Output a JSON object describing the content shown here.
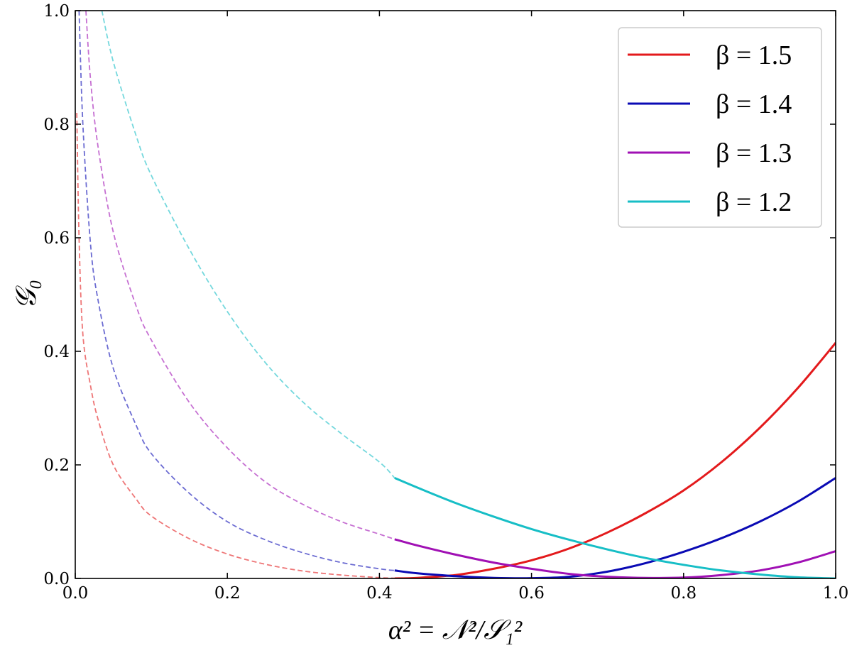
{
  "chart_data": {
    "type": "line",
    "title": "",
    "xlabel": "α² = 𝒩²/𝒮₁²",
    "ylabel": "𝒢₀",
    "xlim": [
      0.0,
      1.0
    ],
    "ylim": [
      0.0,
      1.0
    ],
    "x_ticks": [
      "0.0",
      "0.2",
      "0.4",
      "0.6",
      "0.8",
      "1.0"
    ],
    "y_ticks": [
      "0.0",
      "0.2",
      "0.4",
      "0.6",
      "0.8",
      "1.0"
    ],
    "grid": false,
    "legend_position": "top-right",
    "series": [
      {
        "name": "β = 1.5",
        "color": "#e31a1c",
        "dashed_points": [
          [
            0.002,
            0.82
          ],
          [
            0.005,
            0.6
          ],
          [
            0.01,
            0.43
          ],
          [
            0.02,
            0.34
          ],
          [
            0.03,
            0.28
          ],
          [
            0.05,
            0.2
          ],
          [
            0.08,
            0.14
          ],
          [
            0.1,
            0.11
          ],
          [
            0.15,
            0.07
          ],
          [
            0.2,
            0.043
          ],
          [
            0.25,
            0.025
          ],
          [
            0.3,
            0.013
          ],
          [
            0.35,
            0.006
          ],
          [
            0.4,
            0.0015
          ],
          [
            0.42,
            0.0005
          ]
        ],
        "solid_points": [
          [
            0.42,
            0.0
          ],
          [
            0.45,
            0.001
          ],
          [
            0.5,
            0.006
          ],
          [
            0.55,
            0.017
          ],
          [
            0.6,
            0.032
          ],
          [
            0.65,
            0.053
          ],
          [
            0.7,
            0.081
          ],
          [
            0.75,
            0.115
          ],
          [
            0.8,
            0.155
          ],
          [
            0.85,
            0.205
          ],
          [
            0.9,
            0.265
          ],
          [
            0.95,
            0.335
          ],
          [
            1.0,
            0.415
          ]
        ]
      },
      {
        "name": "β = 1.4",
        "color": "#0a0ab4",
        "dashed_points": [
          [
            0.005,
            1.0
          ],
          [
            0.01,
            0.8
          ],
          [
            0.02,
            0.59
          ],
          [
            0.03,
            0.49
          ],
          [
            0.05,
            0.37
          ],
          [
            0.08,
            0.27
          ],
          [
            0.1,
            0.22
          ],
          [
            0.15,
            0.15
          ],
          [
            0.2,
            0.1
          ],
          [
            0.25,
            0.068
          ],
          [
            0.3,
            0.045
          ],
          [
            0.35,
            0.028
          ],
          [
            0.4,
            0.017
          ],
          [
            0.42,
            0.014
          ]
        ],
        "solid_points": [
          [
            0.42,
            0.014
          ],
          [
            0.45,
            0.009
          ],
          [
            0.5,
            0.004
          ],
          [
            0.55,
            0.001
          ],
          [
            0.6,
            0.0004
          ],
          [
            0.65,
            0.003
          ],
          [
            0.7,
            0.012
          ],
          [
            0.75,
            0.027
          ],
          [
            0.8,
            0.047
          ],
          [
            0.85,
            0.071
          ],
          [
            0.9,
            0.1
          ],
          [
            0.95,
            0.135
          ],
          [
            1.0,
            0.177
          ]
        ]
      },
      {
        "name": "β = 1.3",
        "color": "#a010b4",
        "dashed_points": [
          [
            0.014,
            1.0
          ],
          [
            0.02,
            0.88
          ],
          [
            0.03,
            0.76
          ],
          [
            0.05,
            0.61
          ],
          [
            0.08,
            0.48
          ],
          [
            0.1,
            0.42
          ],
          [
            0.15,
            0.31
          ],
          [
            0.2,
            0.23
          ],
          [
            0.25,
            0.17
          ],
          [
            0.3,
            0.13
          ],
          [
            0.35,
            0.1
          ],
          [
            0.4,
            0.078
          ],
          [
            0.42,
            0.069
          ]
        ],
        "solid_points": [
          [
            0.42,
            0.069
          ],
          [
            0.45,
            0.058
          ],
          [
            0.5,
            0.042
          ],
          [
            0.55,
            0.028
          ],
          [
            0.6,
            0.017
          ],
          [
            0.65,
            0.008
          ],
          [
            0.7,
            0.003
          ],
          [
            0.75,
            0.001
          ],
          [
            0.8,
            0.0015
          ],
          [
            0.85,
            0.006
          ],
          [
            0.9,
            0.014
          ],
          [
            0.95,
            0.028
          ],
          [
            1.0,
            0.048
          ]
        ]
      },
      {
        "name": "β = 1.2",
        "color": "#17bec6",
        "dashed_points": [
          [
            0.035,
            1.0
          ],
          [
            0.05,
            0.91
          ],
          [
            0.08,
            0.78
          ],
          [
            0.1,
            0.71
          ],
          [
            0.15,
            0.58
          ],
          [
            0.2,
            0.47
          ],
          [
            0.25,
            0.38
          ],
          [
            0.3,
            0.31
          ],
          [
            0.35,
            0.255
          ],
          [
            0.4,
            0.205
          ],
          [
            0.42,
            0.177
          ]
        ],
        "solid_points": [
          [
            0.42,
            0.177
          ],
          [
            0.45,
            0.16
          ],
          [
            0.5,
            0.133
          ],
          [
            0.55,
            0.109
          ],
          [
            0.6,
            0.087
          ],
          [
            0.65,
            0.068
          ],
          [
            0.7,
            0.051
          ],
          [
            0.75,
            0.036
          ],
          [
            0.8,
            0.024
          ],
          [
            0.85,
            0.014
          ],
          [
            0.9,
            0.007
          ],
          [
            0.95,
            0.002
          ],
          [
            1.0,
            0.0
          ]
        ]
      }
    ]
  }
}
